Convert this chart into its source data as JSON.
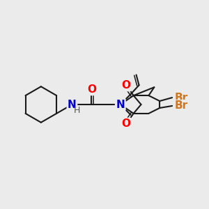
{
  "background_color": "#ebebeb",
  "bond_color": "#1a1a1a",
  "bond_width": 1.5,
  "atom_colors": {
    "O": "#ff0000",
    "N": "#0000cd",
    "Br": "#cc7722",
    "H": "#555555",
    "C": "#1a1a1a"
  },
  "figsize": [
    3.0,
    3.0
  ],
  "dpi": 100
}
